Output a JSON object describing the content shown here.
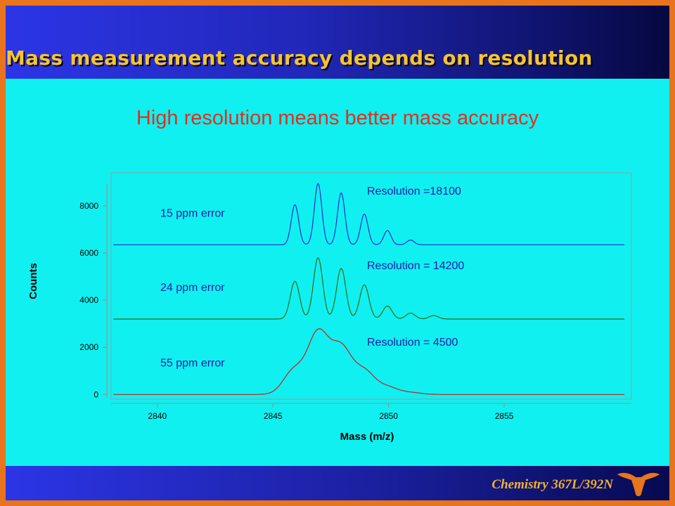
{
  "slide": {
    "title": "Mass measurement accuracy depends on resolution",
    "subtitle": "High resolution means better mass accuracy",
    "course": "Chemistry 367L/392N"
  },
  "colors": {
    "header_blue": "#2c35e6",
    "title_gold": "#f4c430",
    "content_cyan": "#10f0f0",
    "border_orange": "#e8741d",
    "subtitle_red": "#e03020",
    "annotation_blue": "#1c1ca8",
    "series_high": "#2a2ad0",
    "series_mid": "#2c6a10",
    "series_low": "#c02020"
  },
  "icons": {
    "logo": "longhorn-logo-icon"
  },
  "chart_data": {
    "type": "line",
    "xlabel": "Mass (m/z)",
    "ylabel": "Counts",
    "xlim": [
      2838,
      2860.5
    ],
    "ylim": [
      -200,
      9400
    ],
    "xticks": [
      2840,
      2845,
      2850,
      2855
    ],
    "yticks": [
      0,
      2000,
      4000,
      6000,
      8000
    ],
    "grid": false,
    "legend": "none",
    "series": [
      {
        "resolution_label": "Resolution =18100",
        "error_label": "15 ppm error",
        "color": "#2a2ad0",
        "baseline": 6350,
        "peak_width": 0.16,
        "peaks": [
          [
            2845.95,
            1700
          ],
          [
            2846.95,
            2600
          ],
          [
            2847.95,
            2200
          ],
          [
            2848.95,
            1300
          ],
          [
            2849.95,
            600
          ],
          [
            2850.95,
            200
          ]
        ]
      },
      {
        "resolution_label": "Resolution = 14200",
        "error_label": "24 ppm error",
        "color": "#2c6a10",
        "baseline": 3200,
        "peak_width": 0.2,
        "peaks": [
          [
            2845.95,
            1600
          ],
          [
            2846.95,
            2600
          ],
          [
            2847.95,
            2150
          ],
          [
            2848.95,
            1450
          ],
          [
            2849.95,
            550
          ],
          [
            2850.95,
            250
          ],
          [
            2851.95,
            150
          ]
        ]
      },
      {
        "resolution_label": "Resolution = 4500",
        "error_label": "55 ppm error",
        "color": "#c02020",
        "baseline": 0,
        "peak_width": 0.45,
        "peaks": [
          [
            2845.9,
            1000
          ],
          [
            2846.95,
            2550
          ],
          [
            2847.95,
            1900
          ],
          [
            2848.95,
            950
          ],
          [
            2849.95,
            300
          ],
          [
            2850.95,
            80
          ]
        ]
      }
    ]
  }
}
